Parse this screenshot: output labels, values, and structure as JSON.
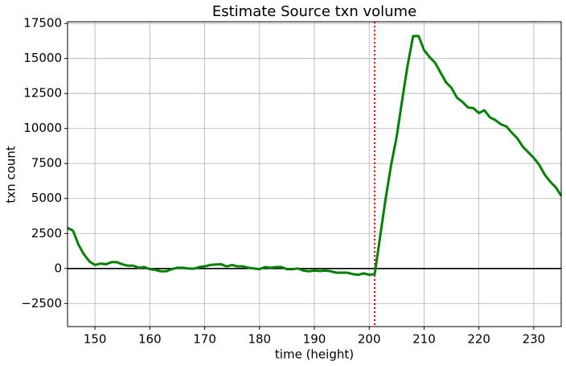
{
  "chart_data": {
    "type": "line",
    "title": "Estimate Source txn volume",
    "x_label": "time (height)",
    "y_label": "txn count",
    "x": [
      145,
      146,
      147,
      148,
      149,
      150,
      151,
      152,
      153,
      154,
      155,
      156,
      157,
      158,
      159,
      160,
      161,
      162,
      163,
      164,
      165,
      166,
      167,
      168,
      169,
      170,
      171,
      172,
      173,
      174,
      175,
      176,
      177,
      178,
      179,
      180,
      181,
      182,
      183,
      184,
      185,
      186,
      187,
      188,
      189,
      190,
      191,
      192,
      193,
      194,
      195,
      196,
      197,
      198,
      199,
      200,
      201,
      202,
      203,
      204,
      205,
      206,
      207,
      208,
      209,
      210,
      211,
      212,
      213,
      214,
      215,
      216,
      217,
      218,
      219,
      220,
      221,
      222,
      223,
      224,
      225,
      226,
      227,
      228,
      229,
      230,
      231,
      232,
      233,
      234,
      235
    ],
    "series": [
      {
        "color": "#008000",
        "values": [
          2900,
          2700,
          1700,
          1000,
          500,
          250,
          350,
          300,
          450,
          450,
          300,
          200,
          200,
          50,
          100,
          -50,
          -100,
          -200,
          -200,
          -50,
          50,
          50,
          0,
          -20,
          100,
          150,
          250,
          280,
          300,
          150,
          250,
          150,
          150,
          50,
          0,
          -50,
          100,
          50,
          100,
          100,
          -50,
          -50,
          0,
          -150,
          -200,
          -150,
          -180,
          -150,
          -200,
          -300,
          -300,
          -300,
          -400,
          -450,
          -350,
          -450,
          -400,
          2300,
          5000,
          7400,
          9400,
          12000,
          14500,
          16600,
          16600,
          15600,
          15100,
          14700,
          14000,
          13300,
          12900,
          12200,
          11900,
          11500,
          11450,
          11100,
          11300,
          10800,
          10600,
          10300,
          10150,
          9700,
          9300,
          8700,
          8300,
          7900,
          7400,
          6700,
          6200,
          5800,
          5200
        ]
      }
    ],
    "xlim": [
      145,
      235
    ],
    "ylim": [
      -4150,
      17625
    ],
    "xticks": [
      150,
      160,
      170,
      180,
      190,
      200,
      210,
      220,
      230
    ],
    "yticks": [
      {
        "value": -2500,
        "label": "−2500"
      },
      0,
      2500,
      5000,
      7500,
      10000,
      12500,
      15000,
      17500
    ],
    "grid": true,
    "hline": {
      "value": 0,
      "color": "#000000"
    },
    "vline": {
      "value": 201,
      "color": "#cc0000"
    }
  }
}
